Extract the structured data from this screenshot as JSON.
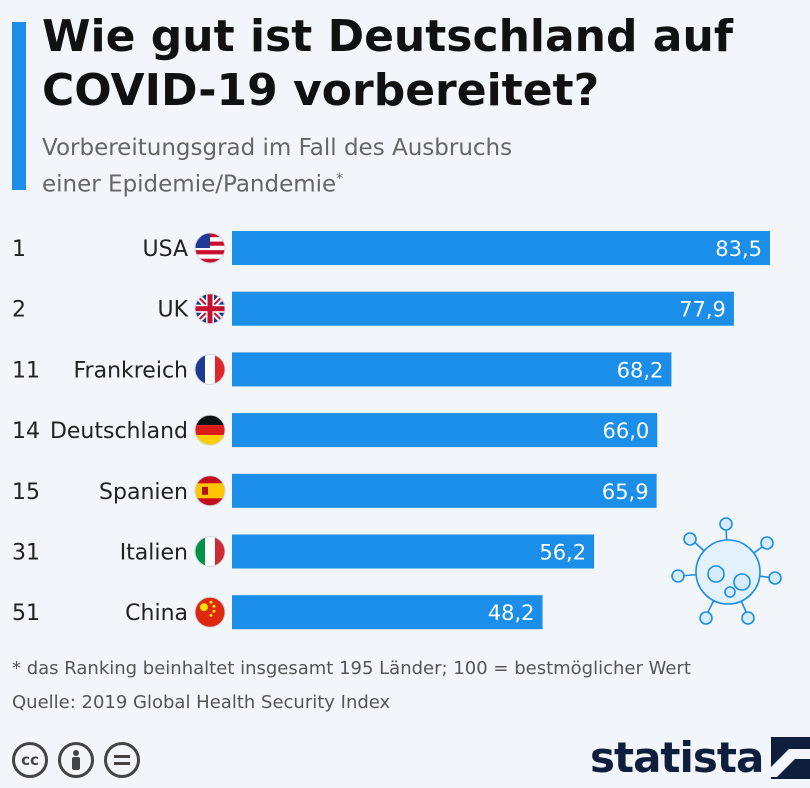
{
  "header": {
    "title": "Wie gut ist Deutschland auf COVID-19 vorbereitet?",
    "subtitle_line1": "Vorbereitungsgrad im Fall des Ausbruchs",
    "subtitle_line2": "einer Epidemie/Pandemie",
    "subtitle_mark": "*"
  },
  "chart_data": {
    "type": "bar",
    "orientation": "horizontal",
    "categories": [
      "USA",
      "UK",
      "Frankreich",
      "Deutschland",
      "Spanien",
      "Italien",
      "China"
    ],
    "ranks": [
      "1",
      "2",
      "11",
      "14",
      "15",
      "31",
      "51"
    ],
    "values": [
      83.5,
      77.9,
      68.2,
      66.0,
      65.9,
      56.2,
      48.2
    ],
    "value_labels": [
      "83,5",
      "77,9",
      "68,2",
      "66,0",
      "65,9",
      "56,2",
      "48,2"
    ],
    "flags": [
      "us-flag",
      "uk-flag",
      "france-flag",
      "germany-flag",
      "spain-flag",
      "italy-flag",
      "china-flag"
    ],
    "bar_color": "#1a8ee8",
    "xlim": [
      0,
      83.5
    ],
    "grid": false
  },
  "footer": {
    "footnote": "* das Ranking beinhaltet insgesamt 195 Länder; 100 = bestmöglicher Wert",
    "source": "Quelle: 2019 Global Health Security Index",
    "license_icons": [
      "cc-icon",
      "attribution-icon",
      "no-derivatives-icon"
    ],
    "brand": "statista"
  },
  "colors": {
    "accent": "#1a8ee8",
    "background": "#f2f5f9",
    "brand": "#0f1e3c"
  }
}
